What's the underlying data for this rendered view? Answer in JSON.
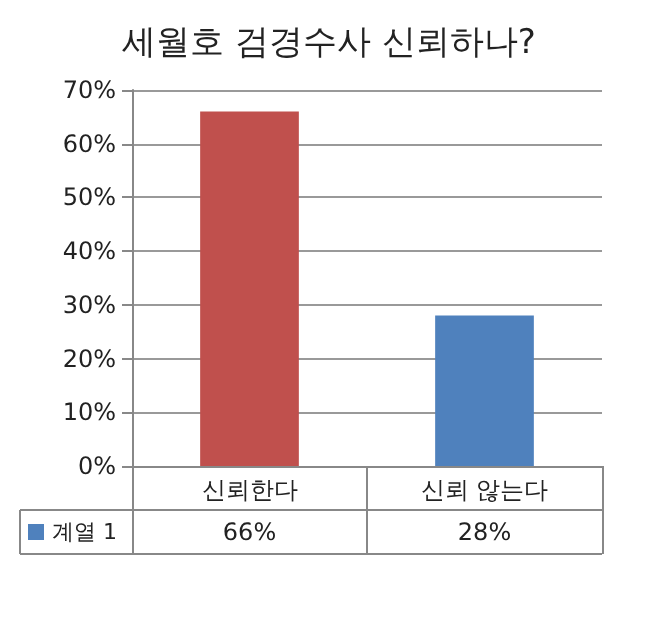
{
  "chart_data": {
    "type": "bar",
    "title": "세월호 검경수사 신뢰하나?",
    "categories": [
      "신뢰한다",
      "신뢰 않는다"
    ],
    "series": [
      {
        "name": "계열 1",
        "color": "#4f81bd",
        "colors": [
          "#c0504d",
          "#4f81bd"
        ],
        "values": [
          66,
          28
        ],
        "value_labels": [
          "66%",
          "28%"
        ]
      }
    ],
    "ylim": [
      0,
      70
    ],
    "yticks": [
      {
        "value": 0,
        "label": "0%"
      },
      {
        "value": 10,
        "label": "10%"
      },
      {
        "value": 20,
        "label": "20%"
      },
      {
        "value": 30,
        "label": "30%"
      },
      {
        "value": 40,
        "label": "40%"
      },
      {
        "value": 50,
        "label": "50%"
      },
      {
        "value": 60,
        "label": "60%"
      },
      {
        "value": 70,
        "label": "70%"
      }
    ],
    "grid": "y"
  }
}
